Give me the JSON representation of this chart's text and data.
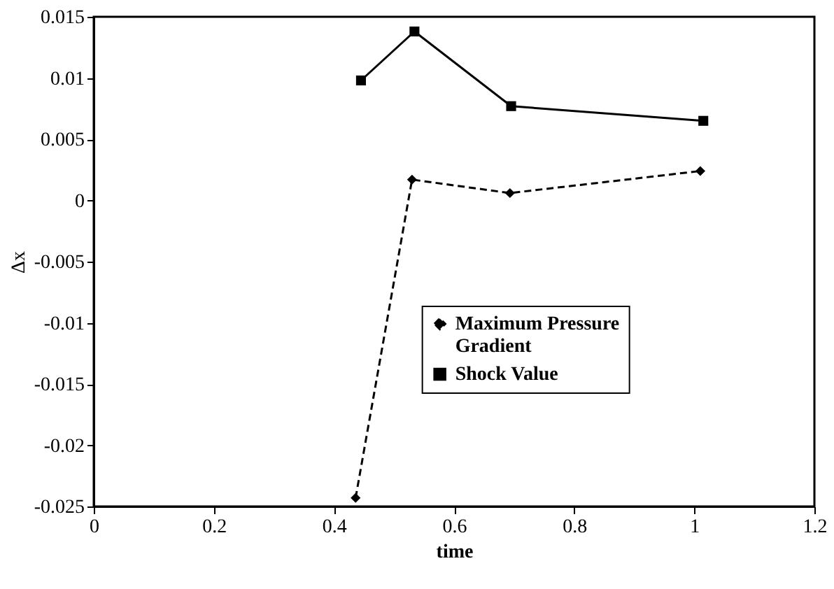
{
  "chart_data": {
    "type": "line",
    "xlabel": "time",
    "ylabel": "Δx",
    "xlim": [
      0,
      1.2
    ],
    "xticks": [
      0,
      0.2,
      0.4,
      0.6,
      0.8,
      1,
      1.2
    ],
    "ylim": [
      -0.025,
      0.015
    ],
    "yticks": [
      -0.025,
      -0.02,
      -0.015,
      -0.01,
      -0.005,
      0,
      0.005,
      0.01,
      0.015
    ],
    "grid": false,
    "legend": "right",
    "series": [
      {
        "name": "Maximum Pressure Gradient",
        "color": "#000000",
        "marker": "diamond",
        "line_style": "dashed",
        "x": [
          0.436,
          0.53,
          0.693,
          1.01
        ],
        "values": [
          -0.0243,
          0.0017,
          0.0006,
          0.0024
        ]
      },
      {
        "name": "Shock Value",
        "color": "#000000",
        "marker": "square",
        "line_style": "solid",
        "x": [
          0.445,
          0.534,
          0.695,
          1.015
        ],
        "values": [
          0.0098,
          0.0138,
          0.0077,
          0.0065
        ]
      }
    ]
  }
}
